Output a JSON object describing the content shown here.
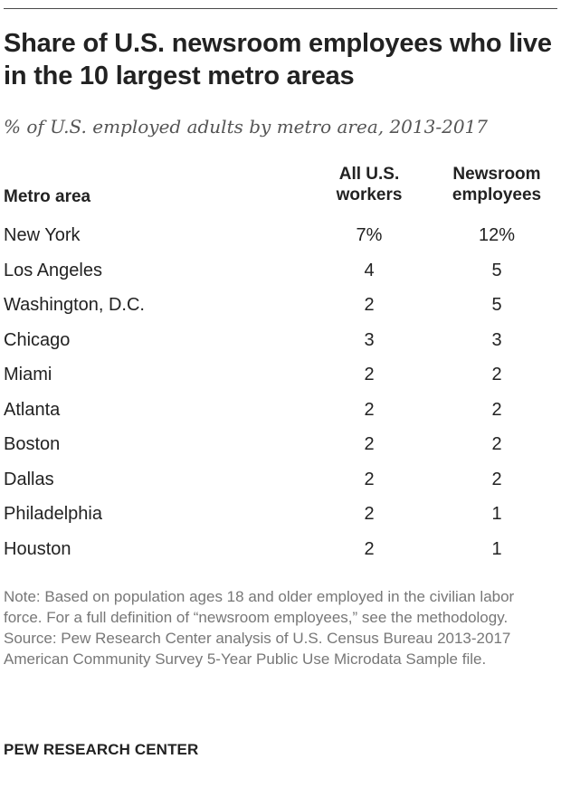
{
  "chart_data": {
    "type": "table",
    "title": "Share of U.S. newsroom employees who live in the 10 largest metro areas",
    "subtitle": "% of U.S. employed adults by metro area, 2013-2017",
    "columns": [
      "Metro area",
      "All U.S. workers",
      "Newsroom employees"
    ],
    "column_lines": {
      "all": [
        "All U.S.",
        "workers"
      ],
      "news": [
        "Newsroom",
        "employees"
      ]
    },
    "rows": [
      {
        "metro": "New York",
        "all": "7%",
        "news": "12%"
      },
      {
        "metro": "Los Angeles",
        "all": "4",
        "news": "5"
      },
      {
        "metro": "Washington, D.C.",
        "all": "2",
        "news": "5"
      },
      {
        "metro": "Chicago",
        "all": "3",
        "news": "3"
      },
      {
        "metro": "Miami",
        "all": "2",
        "news": "2"
      },
      {
        "metro": "Atlanta",
        "all": "2",
        "news": "2"
      },
      {
        "metro": "Boston",
        "all": "2",
        "news": "2"
      },
      {
        "metro": "Dallas",
        "all": "2",
        "news": "2"
      },
      {
        "metro": "Philadelphia",
        "all": "2",
        "news": "1"
      },
      {
        "metro": "Houston",
        "all": "2",
        "news": "1"
      }
    ],
    "note": "Note: Based on population ages 18 and older employed in the civilian labor force. For a full definition of “newsroom employees,” see the methodology.",
    "source": "Source: Pew Research Center analysis of U.S. Census Bureau 2013-2017 American Community Survey 5-Year Public Use Microdata Sample file."
  },
  "footer": {
    "brand": "PEW RESEARCH CENTER"
  },
  "colors": {
    "text": "#222222",
    "subtitle": "#555555",
    "note": "#777777",
    "rule": "#4a4a4a"
  }
}
